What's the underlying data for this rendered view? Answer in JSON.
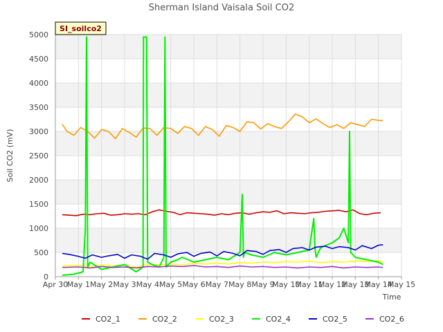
{
  "chart_data": {
    "type": "line",
    "title": "Sherman Island Vaisala Soil CO2",
    "badge": "SI_soilco2",
    "xlabel": "Time",
    "ylabel": "Soil CO2 (mV)",
    "xlim": [
      0,
      15
    ],
    "ylim": [
      0,
      5000
    ],
    "x_ticks": [
      {
        "x": 0,
        "label": "Apr 30"
      },
      {
        "x": 1,
        "label": "May 1"
      },
      {
        "x": 2,
        "label": "May 2"
      },
      {
        "x": 3,
        "label": "May 3"
      },
      {
        "x": 4,
        "label": "May 4"
      },
      {
        "x": 5,
        "label": "May 5"
      },
      {
        "x": 6,
        "label": "May 6"
      },
      {
        "x": 7,
        "label": "May 7"
      },
      {
        "x": 8,
        "label": "May 8"
      },
      {
        "x": 9,
        "label": "May 9"
      },
      {
        "x": 10,
        "label": "May 10"
      },
      {
        "x": 11,
        "label": "May 11"
      },
      {
        "x": 12,
        "label": "May 12"
      },
      {
        "x": 13,
        "label": "May 13"
      },
      {
        "x": 14,
        "label": "May 14"
      },
      {
        "x": 15,
        "label": "May 15"
      }
    ],
    "y_ticks": [
      0,
      500,
      1000,
      1500,
      2000,
      2500,
      3000,
      3500,
      4000,
      4500,
      5000
    ],
    "grid": true,
    "legend_position": "bottom",
    "series": [
      {
        "name": "CO2_1",
        "color": "#cc0000",
        "x": [
          0.3,
          0.6,
          0.9,
          1.2,
          1.5,
          1.8,
          2.1,
          2.4,
          2.7,
          3.0,
          3.3,
          3.6,
          3.9,
          4.2,
          4.5,
          4.8,
          5.1,
          5.4,
          5.7,
          6.0,
          6.3,
          6.6,
          6.9,
          7.2,
          7.5,
          7.8,
          8.1,
          8.4,
          8.7,
          9.0,
          9.3,
          9.6,
          9.9,
          10.2,
          10.5,
          10.8,
          11.1,
          11.4,
          11.7,
          12.0,
          12.3,
          12.6,
          12.9,
          13.2,
          13.5,
          13.8,
          14.1
        ],
        "values": [
          1280,
          1270,
          1260,
          1290,
          1280,
          1300,
          1310,
          1270,
          1280,
          1300,
          1290,
          1300,
          1280,
          1340,
          1380,
          1350,
          1330,
          1280,
          1320,
          1310,
          1300,
          1290,
          1270,
          1300,
          1280,
          1310,
          1320,
          1290,
          1320,
          1340,
          1330,
          1360,
          1300,
          1320,
          1310,
          1300,
          1320,
          1330,
          1350,
          1360,
          1370,
          1340,
          1380,
          1300,
          1280,
          1310,
          1320
        ]
      },
      {
        "name": "CO2_2",
        "color": "#ff9900",
        "x": [
          0.3,
          0.5,
          0.8,
          1.1,
          1.4,
          1.7,
          2.0,
          2.3,
          2.6,
          2.9,
          3.2,
          3.5,
          3.8,
          4.1,
          4.4,
          4.7,
          5.0,
          5.3,
          5.6,
          5.9,
          6.2,
          6.5,
          6.8,
          7.1,
          7.4,
          7.7,
          8.0,
          8.3,
          8.6,
          8.9,
          9.2,
          9.5,
          9.8,
          10.1,
          10.4,
          10.7,
          11.0,
          11.3,
          11.6,
          11.9,
          12.2,
          12.5,
          12.8,
          13.1,
          13.4,
          13.7,
          14.0,
          14.2
        ],
        "values": [
          3150,
          3000,
          2920,
          3080,
          3000,
          2860,
          3040,
          3000,
          2850,
          3060,
          2980,
          2880,
          3070,
          3060,
          2920,
          3080,
          3060,
          2960,
          3100,
          3060,
          2920,
          3100,
          3040,
          2900,
          3120,
          3080,
          3000,
          3200,
          3180,
          3050,
          3160,
          3100,
          3060,
          3200,
          3360,
          3300,
          3180,
          3260,
          3160,
          3080,
          3140,
          3060,
          3180,
          3140,
          3100,
          3250,
          3230,
          3220
        ]
      },
      {
        "name": "CO2_3",
        "color": "#ffff00",
        "x": [
          0.3,
          1.0,
          1.5,
          2.0,
          2.5,
          3.0,
          3.5,
          4.0,
          4.5,
          5.0,
          5.5,
          6.0,
          6.5,
          7.0,
          7.5,
          8.0,
          8.5,
          9.0,
          9.5,
          10.0,
          10.5,
          11.0,
          11.5,
          12.0,
          12.5,
          13.0,
          13.5,
          14.0,
          14.2
        ],
        "values": [
          220,
          230,
          210,
          240,
          220,
          230,
          200,
          250,
          240,
          260,
          250,
          270,
          260,
          280,
          260,
          290,
          280,
          300,
          290,
          310,
          300,
          320,
          290,
          310,
          300,
          320,
          310,
          330,
          300
        ]
      },
      {
        "name": "CO2_4",
        "color": "#00ee00",
        "x": [
          0.3,
          0.8,
          1.2,
          1.3,
          1.35,
          1.4,
          1.5,
          2.0,
          2.5,
          3.0,
          3.5,
          3.8,
          3.82,
          3.9,
          3.95,
          4.0,
          4.2,
          4.5,
          4.7,
          4.75,
          4.8,
          5.0,
          5.3,
          5.5,
          6.0,
          6.5,
          7.0,
          7.5,
          8.0,
          8.1,
          8.15,
          8.2,
          8.5,
          9.0,
          9.5,
          10.0,
          10.5,
          11.0,
          11.2,
          11.25,
          11.3,
          11.5,
          12.0,
          12.3,
          12.5,
          12.7,
          12.75,
          12.8,
          13.0,
          13.5,
          14.0,
          14.2
        ],
        "values": [
          30,
          50,
          100,
          1000,
          4950,
          200,
          300,
          150,
          200,
          250,
          100,
          200,
          4950,
          4950,
          4950,
          300,
          250,
          200,
          400,
          4950,
          200,
          300,
          350,
          400,
          300,
          350,
          400,
          350,
          500,
          1700,
          400,
          500,
          450,
          400,
          500,
          450,
          500,
          550,
          1200,
          600,
          400,
          600,
          700,
          800,
          1000,
          700,
          3000,
          500,
          400,
          350,
          300,
          250
        ]
      },
      {
        "name": "CO2_5",
        "color": "#0000cc",
        "x": [
          0.3,
          0.6,
          1.0,
          1.3,
          1.6,
          2.0,
          2.3,
          2.7,
          3.0,
          3.3,
          3.7,
          4.0,
          4.3,
          4.7,
          5.0,
          5.3,
          5.7,
          6.0,
          6.3,
          6.7,
          7.0,
          7.3,
          7.7,
          8.0,
          8.3,
          8.7,
          9.0,
          9.3,
          9.7,
          10.0,
          10.3,
          10.7,
          11.0,
          11.3,
          11.7,
          12.0,
          12.3,
          12.7,
          13.0,
          13.3,
          13.7,
          14.0,
          14.2
        ],
        "values": [
          480,
          460,
          420,
          380,
          450,
          400,
          430,
          460,
          380,
          450,
          420,
          360,
          480,
          450,
          400,
          470,
          500,
          420,
          480,
          510,
          430,
          520,
          480,
          430,
          540,
          520,
          460,
          540,
          560,
          500,
          580,
          600,
          550,
          610,
          630,
          580,
          620,
          600,
          550,
          640,
          580,
          650,
          660
        ]
      },
      {
        "name": "CO2_6",
        "color": "#9933cc",
        "x": [
          0.3,
          1.0,
          1.5,
          2.0,
          2.5,
          3.0,
          3.5,
          4.0,
          4.5,
          5.0,
          5.5,
          6.0,
          6.5,
          7.0,
          7.5,
          8.0,
          8.5,
          9.0,
          9.5,
          10.0,
          10.5,
          11.0,
          11.5,
          12.0,
          12.5,
          13.0,
          13.5,
          14.0,
          14.2
        ],
        "values": [
          190,
          200,
          180,
          210,
          190,
          200,
          180,
          210,
          200,
          220,
          210,
          230,
          200,
          210,
          190,
          220,
          200,
          210,
          190,
          200,
          180,
          200,
          190,
          210,
          180,
          200,
          190,
          200,
          190
        ]
      }
    ]
  }
}
